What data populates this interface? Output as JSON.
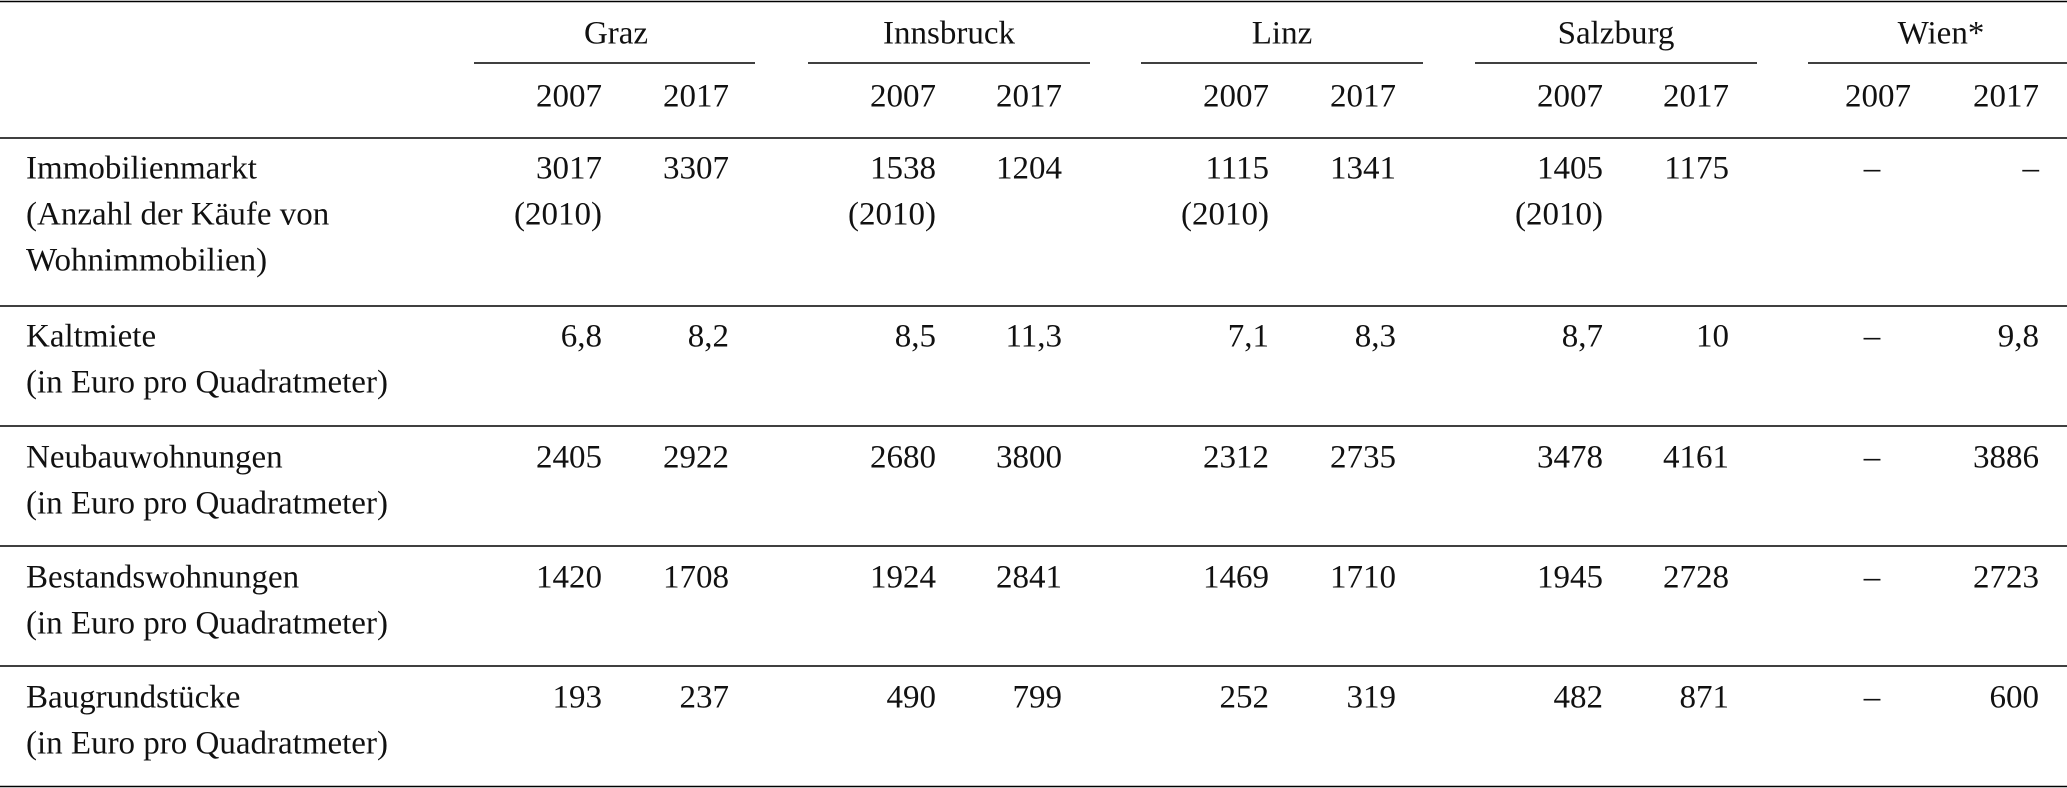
{
  "header": {
    "cities": [
      "Graz",
      "Innsbruck",
      "Linz",
      "Salzburg",
      "Wien*"
    ],
    "years": [
      "2007",
      "2017",
      "2007",
      "2017",
      "2007",
      "2017",
      "2007",
      "2017",
      "2007",
      "2017"
    ]
  },
  "rows": [
    {
      "label": [
        "Immobilienmarkt",
        "(Anzahl der Käufe von",
        "Wohnimmobilien)"
      ],
      "cells": [
        [
          "3017",
          "(2010)"
        ],
        [
          "3307"
        ],
        [
          "1538",
          "(2010)"
        ],
        [
          "1204"
        ],
        [
          "1115",
          "(2010)"
        ],
        [
          "1341"
        ],
        [
          "1405",
          "(2010)"
        ],
        [
          "1175"
        ],
        [
          "–"
        ],
        [
          "–"
        ]
      ]
    },
    {
      "label": [
        "Kaltmiete",
        "(in Euro pro Quadratmeter)"
      ],
      "cells": [
        [
          "6,8"
        ],
        [
          "8,2"
        ],
        [
          "8,5"
        ],
        [
          "11,3"
        ],
        [
          "7,1"
        ],
        [
          "8,3"
        ],
        [
          "8,7"
        ],
        [
          "10"
        ],
        [
          "–"
        ],
        [
          "9,8"
        ]
      ]
    },
    {
      "label": [
        "Neubauwohnungen",
        "(in Euro pro Quadratmeter)"
      ],
      "cells": [
        [
          "2405"
        ],
        [
          "2922"
        ],
        [
          "2680"
        ],
        [
          "3800"
        ],
        [
          "2312"
        ],
        [
          "2735"
        ],
        [
          "3478"
        ],
        [
          "4161"
        ],
        [
          "–"
        ],
        [
          "3886"
        ]
      ]
    },
    {
      "label": [
        "Bestandswohnungen",
        "(in Euro pro Quadratmeter)"
      ],
      "cells": [
        [
          "1420"
        ],
        [
          "1708"
        ],
        [
          "1924"
        ],
        [
          "2841"
        ],
        [
          "1469"
        ],
        [
          "1710"
        ],
        [
          "1945"
        ],
        [
          "2728"
        ],
        [
          "–"
        ],
        [
          "2723"
        ]
      ]
    },
    {
      "label": [
        "Baugrundstücke",
        "(in Euro pro Quadratmeter)"
      ],
      "cells": [
        [
          "193"
        ],
        [
          "237"
        ],
        [
          "490"
        ],
        [
          "799"
        ],
        [
          "252"
        ],
        [
          "319"
        ],
        [
          "482"
        ],
        [
          "871"
        ],
        [
          "–"
        ],
        [
          "600"
        ]
      ]
    }
  ]
}
